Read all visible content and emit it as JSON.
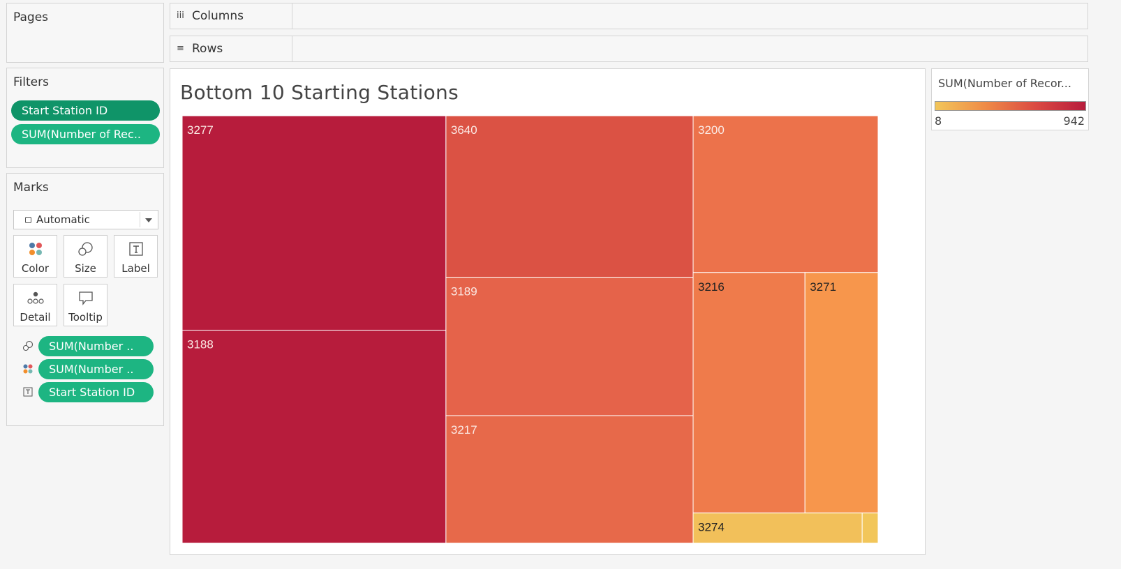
{
  "pages": {
    "title": "Pages"
  },
  "shelves": {
    "columns": "Columns",
    "rows": "Rows",
    "columns_icon": "iii",
    "rows_icon": "≡"
  },
  "filters": {
    "title": "Filters",
    "pills": [
      "Start Station ID",
      "SUM(Number of Rec.."
    ]
  },
  "marks": {
    "title": "Marks",
    "mark_type": "Automatic",
    "buttons": {
      "color": "Color",
      "size": "Size",
      "label": "Label",
      "detail": "Detail",
      "tooltip": "Tooltip"
    },
    "pills": [
      "SUM(Number ..",
      "SUM(Number ..",
      "Start Station ID"
    ]
  },
  "legend": {
    "title": "SUM(Number of Recor...",
    "min": "8",
    "max": "942",
    "colors": [
      "#f2c65a",
      "#ef8b47",
      "#db4a42",
      "#b71c3c"
    ]
  },
  "sheet": {
    "title": "Bottom 10 Starting Stations"
  },
  "chart_data": {
    "type": "treemap",
    "title": "Bottom 10 Starting Stations",
    "color_measure_range": [
      8,
      942
    ],
    "items": [
      {
        "label": "3277",
        "value": 942,
        "color": "#b71c3c"
      },
      {
        "label": "3188",
        "value": 936,
        "color": "#b71c3c"
      },
      {
        "label": "3640",
        "value": 665,
        "color": "#db5244"
      },
      {
        "label": "3189",
        "value": 570,
        "color": "#e5634a"
      },
      {
        "label": "3217",
        "value": 525,
        "color": "#e7694a"
      },
      {
        "label": "3200",
        "value": 483,
        "color": "#ec724b"
      },
      {
        "label": "3216",
        "value": 448,
        "color": "#ef7b4b"
      },
      {
        "label": "3271",
        "value": 293,
        "color": "#f7964c"
      },
      {
        "label": "3274",
        "value": 85,
        "color": "#f2c05a"
      },
      {
        "label": "",
        "value": 8,
        "color": "#f2c65a"
      }
    ]
  }
}
